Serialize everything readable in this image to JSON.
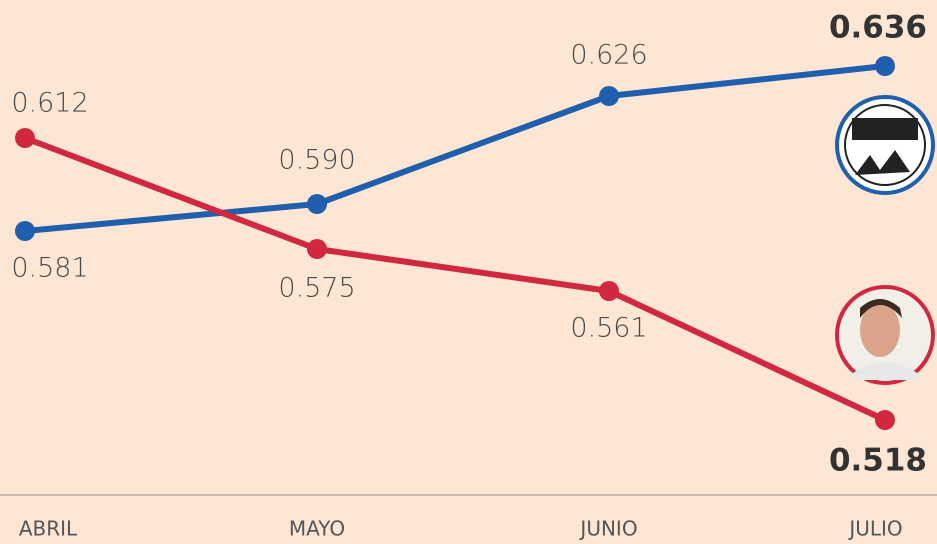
{
  "chart_data": {
    "type": "line",
    "categories": [
      "ABRIL",
      "MAYO",
      "JUNIO",
      "JULIO"
    ],
    "series": [
      {
        "color": "#1f5fad",
        "values": [
          0.581,
          0.59,
          0.626,
          0.636
        ],
        "value_labels": [
          "0.581",
          "0.590",
          "0.626",
          "0.636"
        ]
      },
      {
        "color": "#d1283f",
        "values": [
          0.612,
          0.575,
          0.561,
          0.518
        ],
        "value_labels": [
          "0.612",
          "0.575",
          "0.561",
          "0.518"
        ]
      }
    ],
    "ylim": [
      0.493,
      0.658
    ]
  }
}
